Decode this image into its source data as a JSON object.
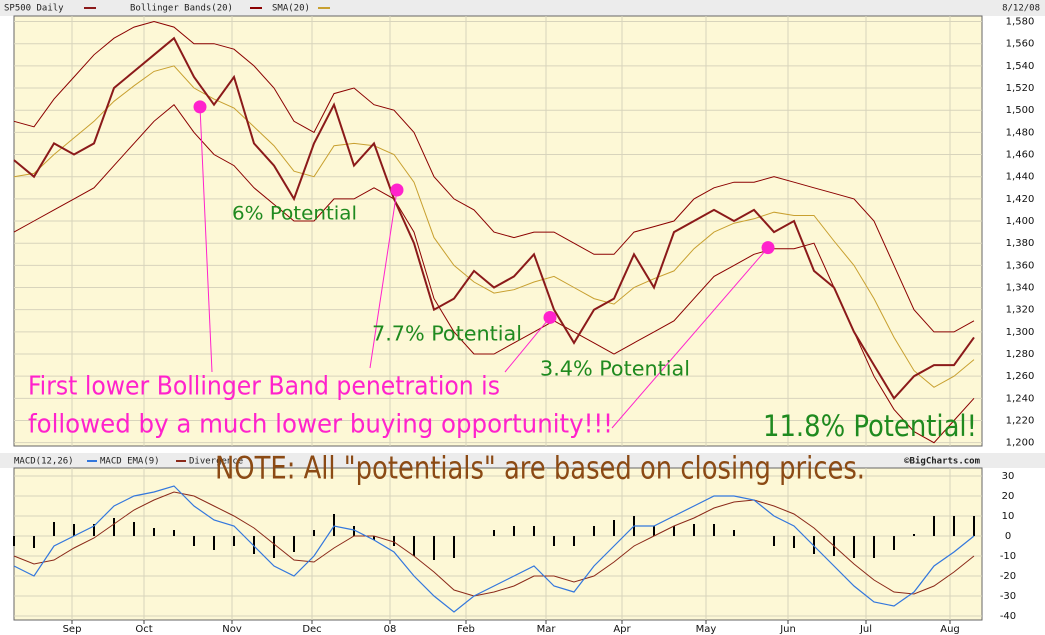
{
  "chart_data": [
    {
      "type": "line",
      "title": "SP500 Daily",
      "date": "8/12/08",
      "x": [
        0,
        5,
        10,
        15,
        20,
        25,
        30,
        35,
        40,
        45,
        50,
        55,
        60,
        65,
        70,
        75,
        80,
        85,
        90,
        95,
        100,
        105,
        110,
        115,
        120,
        125,
        130,
        135,
        140,
        145,
        150,
        155,
        160,
        165,
        170,
        175,
        180,
        185,
        190,
        195,
        200,
        205,
        210,
        215,
        220,
        225,
        230,
        235,
        240
      ],
      "series": [
        {
          "name": "SP500 Daily",
          "color": "#8b1a1a",
          "values": [
            1455,
            1440,
            1470,
            1460,
            1470,
            1520,
            1535,
            1550,
            1565,
            1530,
            1505,
            1530,
            1470,
            1450,
            1420,
            1470,
            1505,
            1450,
            1470,
            1420,
            1380,
            1320,
            1330,
            1355,
            1340,
            1350,
            1370,
            1320,
            1290,
            1320,
            1330,
            1370,
            1340,
            1390,
            1400,
            1410,
            1400,
            1410,
            1390,
            1400,
            1355,
            1340,
            1300,
            1270,
            1240,
            1260,
            1270,
            1270,
            1295
          ]
        },
        {
          "name": "Bollinger Bands(20)",
          "color": "#8b0000",
          "values": [
            1490,
            1485,
            1510,
            1530,
            1550,
            1565,
            1575,
            1580,
            1575,
            1560,
            1560,
            1555,
            1540,
            1520,
            1490,
            1480,
            1515,
            1520,
            1505,
            1500,
            1480,
            1440,
            1420,
            1410,
            1390,
            1385,
            1390,
            1390,
            1380,
            1370,
            1370,
            1390,
            1395,
            1400,
            1420,
            1430,
            1435,
            1435,
            1440,
            1435,
            1430,
            1425,
            1420,
            1400,
            1360,
            1320,
            1300,
            1300,
            1310
          ],
          "lower": [
            1390,
            1400,
            1410,
            1420,
            1430,
            1450,
            1470,
            1490,
            1505,
            1480,
            1460,
            1450,
            1430,
            1415,
            1400,
            1400,
            1420,
            1420,
            1430,
            1420,
            1390,
            1330,
            1300,
            1280,
            1280,
            1290,
            1300,
            1310,
            1300,
            1290,
            1280,
            1290,
            1300,
            1310,
            1330,
            1350,
            1360,
            1370,
            1375,
            1375,
            1380,
            1340,
            1300,
            1260,
            1230,
            1210,
            1200,
            1220,
            1240
          ]
        },
        {
          "name": "SMA(20)",
          "color": "#c8a030",
          "values": [
            1440,
            1443,
            1460,
            1475,
            1490,
            1508,
            1522,
            1535,
            1540,
            1520,
            1510,
            1502,
            1485,
            1468,
            1445,
            1440,
            1468,
            1470,
            1468,
            1460,
            1435,
            1385,
            1360,
            1345,
            1335,
            1338,
            1345,
            1350,
            1340,
            1330,
            1325,
            1340,
            1348,
            1355,
            1375,
            1390,
            1398,
            1402,
            1408,
            1405,
            1405,
            1382,
            1360,
            1330,
            1295,
            1265,
            1250,
            1260,
            1275
          ]
        }
      ],
      "markers": {
        "color": "#ff22cc",
        "x": [
          46.5,
          95.75,
          134,
          188.5
        ],
        "y": [
          1503,
          1428,
          1313,
          1376
        ]
      },
      "xlim": [
        0,
        242
      ],
      "ylim": [
        1197,
        1585
      ],
      "yticks": [
        {
          "value": 1200,
          "label": "1,200"
        },
        {
          "value": 1220,
          "label": "1,220"
        },
        {
          "value": 1240,
          "label": "1,240"
        },
        {
          "value": 1260,
          "label": "1,260"
        },
        {
          "value": 1280,
          "label": "1,280"
        },
        {
          "value": 1300,
          "label": "1,300"
        },
        {
          "value": 1320,
          "label": "1,320"
        },
        {
          "value": 1340,
          "label": "1,340"
        },
        {
          "value": 1360,
          "label": "1,360"
        },
        {
          "value": 1380,
          "label": "1,380"
        },
        {
          "value": 1400,
          "label": "1,400"
        },
        {
          "value": 1420,
          "label": "1,420"
        },
        {
          "value": 1440,
          "label": "1,440"
        },
        {
          "value": 1460,
          "label": "1,460"
        },
        {
          "value": 1480,
          "label": "1,480"
        },
        {
          "value": 1500,
          "label": "1,500"
        },
        {
          "value": 1520,
          "label": "1,520"
        },
        {
          "value": 1540,
          "label": "1,540"
        },
        {
          "value": 1560,
          "label": "1,560"
        },
        {
          "value": 1580,
          "label": "1,580"
        }
      ],
      "grid": true,
      "annotations": [
        "6% Potential",
        "7.7% Potential",
        "3.4% Potential",
        "11.8% Potential!",
        "First lower Bollinger Band penetration is",
        "followed by a much lower buying opportunity!!!"
      ],
      "note": "NOTE: All \"potentials\" are based on closing prices."
    },
    {
      "type": "line",
      "credit": "©BigCharts.com",
      "x": [
        0,
        5,
        10,
        15,
        20,
        25,
        30,
        35,
        40,
        45,
        50,
        55,
        60,
        65,
        70,
        75,
        80,
        85,
        90,
        95,
        100,
        105,
        110,
        115,
        120,
        125,
        130,
        135,
        140,
        145,
        150,
        155,
        160,
        165,
        170,
        175,
        180,
        185,
        190,
        195,
        200,
        205,
        210,
        215,
        220,
        225,
        230,
        235,
        240
      ],
      "series": [
        {
          "name": "MACD(12,26)",
          "color": "#000000",
          "values": [
            -5,
            -6,
            7,
            6,
            6,
            9,
            7,
            4,
            3,
            -5,
            -7,
            -5,
            -9,
            -11,
            -8,
            3,
            11,
            5,
            -2,
            -5,
            -10,
            -12,
            -11,
            0,
            3,
            5,
            5,
            -5,
            -5,
            5,
            8,
            10,
            5,
            5,
            6,
            6,
            3,
            0,
            -5,
            -6,
            -9,
            -10,
            -11,
            -11,
            -7,
            1,
            10,
            10,
            10
          ]
        },
        {
          "name": "MACD EMA(9)",
          "color": "#3377dd",
          "values": [
            -15,
            -20,
            -5,
            0,
            5,
            15,
            20,
            22,
            25,
            15,
            8,
            5,
            -5,
            -15,
            -20,
            -10,
            5,
            3,
            -2,
            -8,
            -20,
            -30,
            -38,
            -30,
            -25,
            -20,
            -15,
            -25,
            -28,
            -15,
            -5,
            5,
            5,
            10,
            15,
            20,
            20,
            18,
            10,
            5,
            -5,
            -15,
            -25,
            -33,
            -35,
            -28,
            -15,
            -8,
            0
          ]
        },
        {
          "name": "Divergence",
          "color": "#8b2a1a",
          "values": [
            -10,
            -14,
            -12,
            -6,
            -1,
            6,
            13,
            18,
            22,
            20,
            15,
            10,
            4,
            -4,
            -12,
            -13,
            -6,
            0,
            0,
            -3,
            -10,
            -18,
            -27,
            -30,
            -28,
            -25,
            -20,
            -20,
            -23,
            -20,
            -13,
            -5,
            0,
            5,
            9,
            14,
            17,
            18,
            15,
            11,
            4,
            -5,
            -14,
            -22,
            -28,
            -29,
            -25,
            -18,
            -10
          ]
        }
      ],
      "xlim": [
        0,
        242
      ],
      "ylim": [
        -42,
        34
      ],
      "yticks": [
        30,
        20,
        10,
        0,
        -10,
        -20,
        -30,
        -40
      ],
      "xticks": [
        {
          "value": 14.5,
          "label": "Sep"
        },
        {
          "value": 32.5,
          "label": "Oct"
        },
        {
          "value": 54.5,
          "label": "Nov"
        },
        {
          "value": 74.5,
          "label": "Dec"
        },
        {
          "value": 94,
          "label": "08"
        },
        {
          "value": 113,
          "label": "Feb"
        },
        {
          "value": 133,
          "label": "Mar"
        },
        {
          "value": 152,
          "label": "Apr"
        },
        {
          "value": 173,
          "label": "May"
        },
        {
          "value": 193.5,
          "label": "Jun"
        },
        {
          "value": 213,
          "label": "Jul"
        },
        {
          "value": 234,
          "label": "Aug"
        }
      ],
      "grid": true
    }
  ]
}
